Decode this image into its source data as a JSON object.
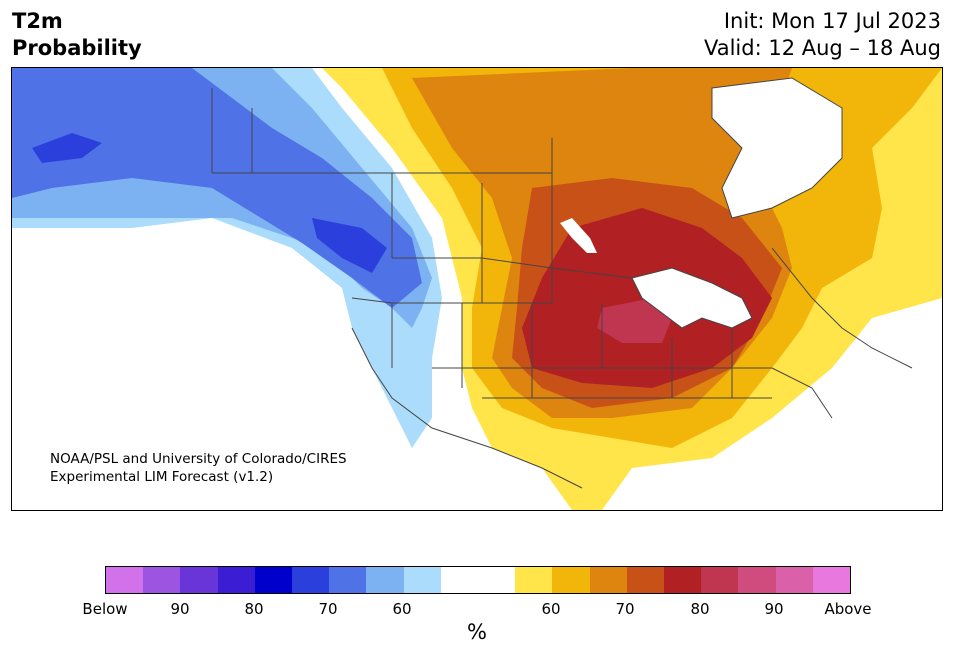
{
  "title": {
    "line1": "T2m",
    "line2": "Probability"
  },
  "init": "Init: Mon 17 Jul 2023",
  "valid": "Valid: 12 Aug – 18 Aug",
  "credit": {
    "line1": "NOAA/PSL and University of Colorado/CIRES",
    "line2": "Experimental LIM Forecast (v1.2)"
  },
  "colorbar": {
    "colors": [
      "#d272eb",
      "#9b55e0",
      "#6a35d8",
      "#3b1ed4",
      "#0000cc",
      "#2a3fdc",
      "#4f72e6",
      "#7db2f2",
      "#abdcfb",
      "#ffffff",
      "#ffffff",
      "#ffe44a",
      "#f2b50a",
      "#dd850e",
      "#c85118",
      "#b12023",
      "#c0354f",
      "#d04c7e",
      "#db60aa",
      "#e878de"
    ],
    "tick_labels": [
      "Below",
      "90",
      "80",
      "70",
      "60",
      "60",
      "70",
      "80",
      "90",
      "Above"
    ],
    "unit": "%"
  },
  "map": {
    "fill_colors": {
      "blue_light": "#abdcfb",
      "blue_mid": "#7db2f2",
      "blue": "#4f72e6",
      "blue_dark": "#2a3fdc",
      "yellow": "#ffe44a",
      "gold": "#f2b50a",
      "orange": "#dd850e",
      "burnt": "#c85118",
      "red": "#b12023",
      "rose": "#c0354f",
      "water": "#ffffff"
    }
  }
}
